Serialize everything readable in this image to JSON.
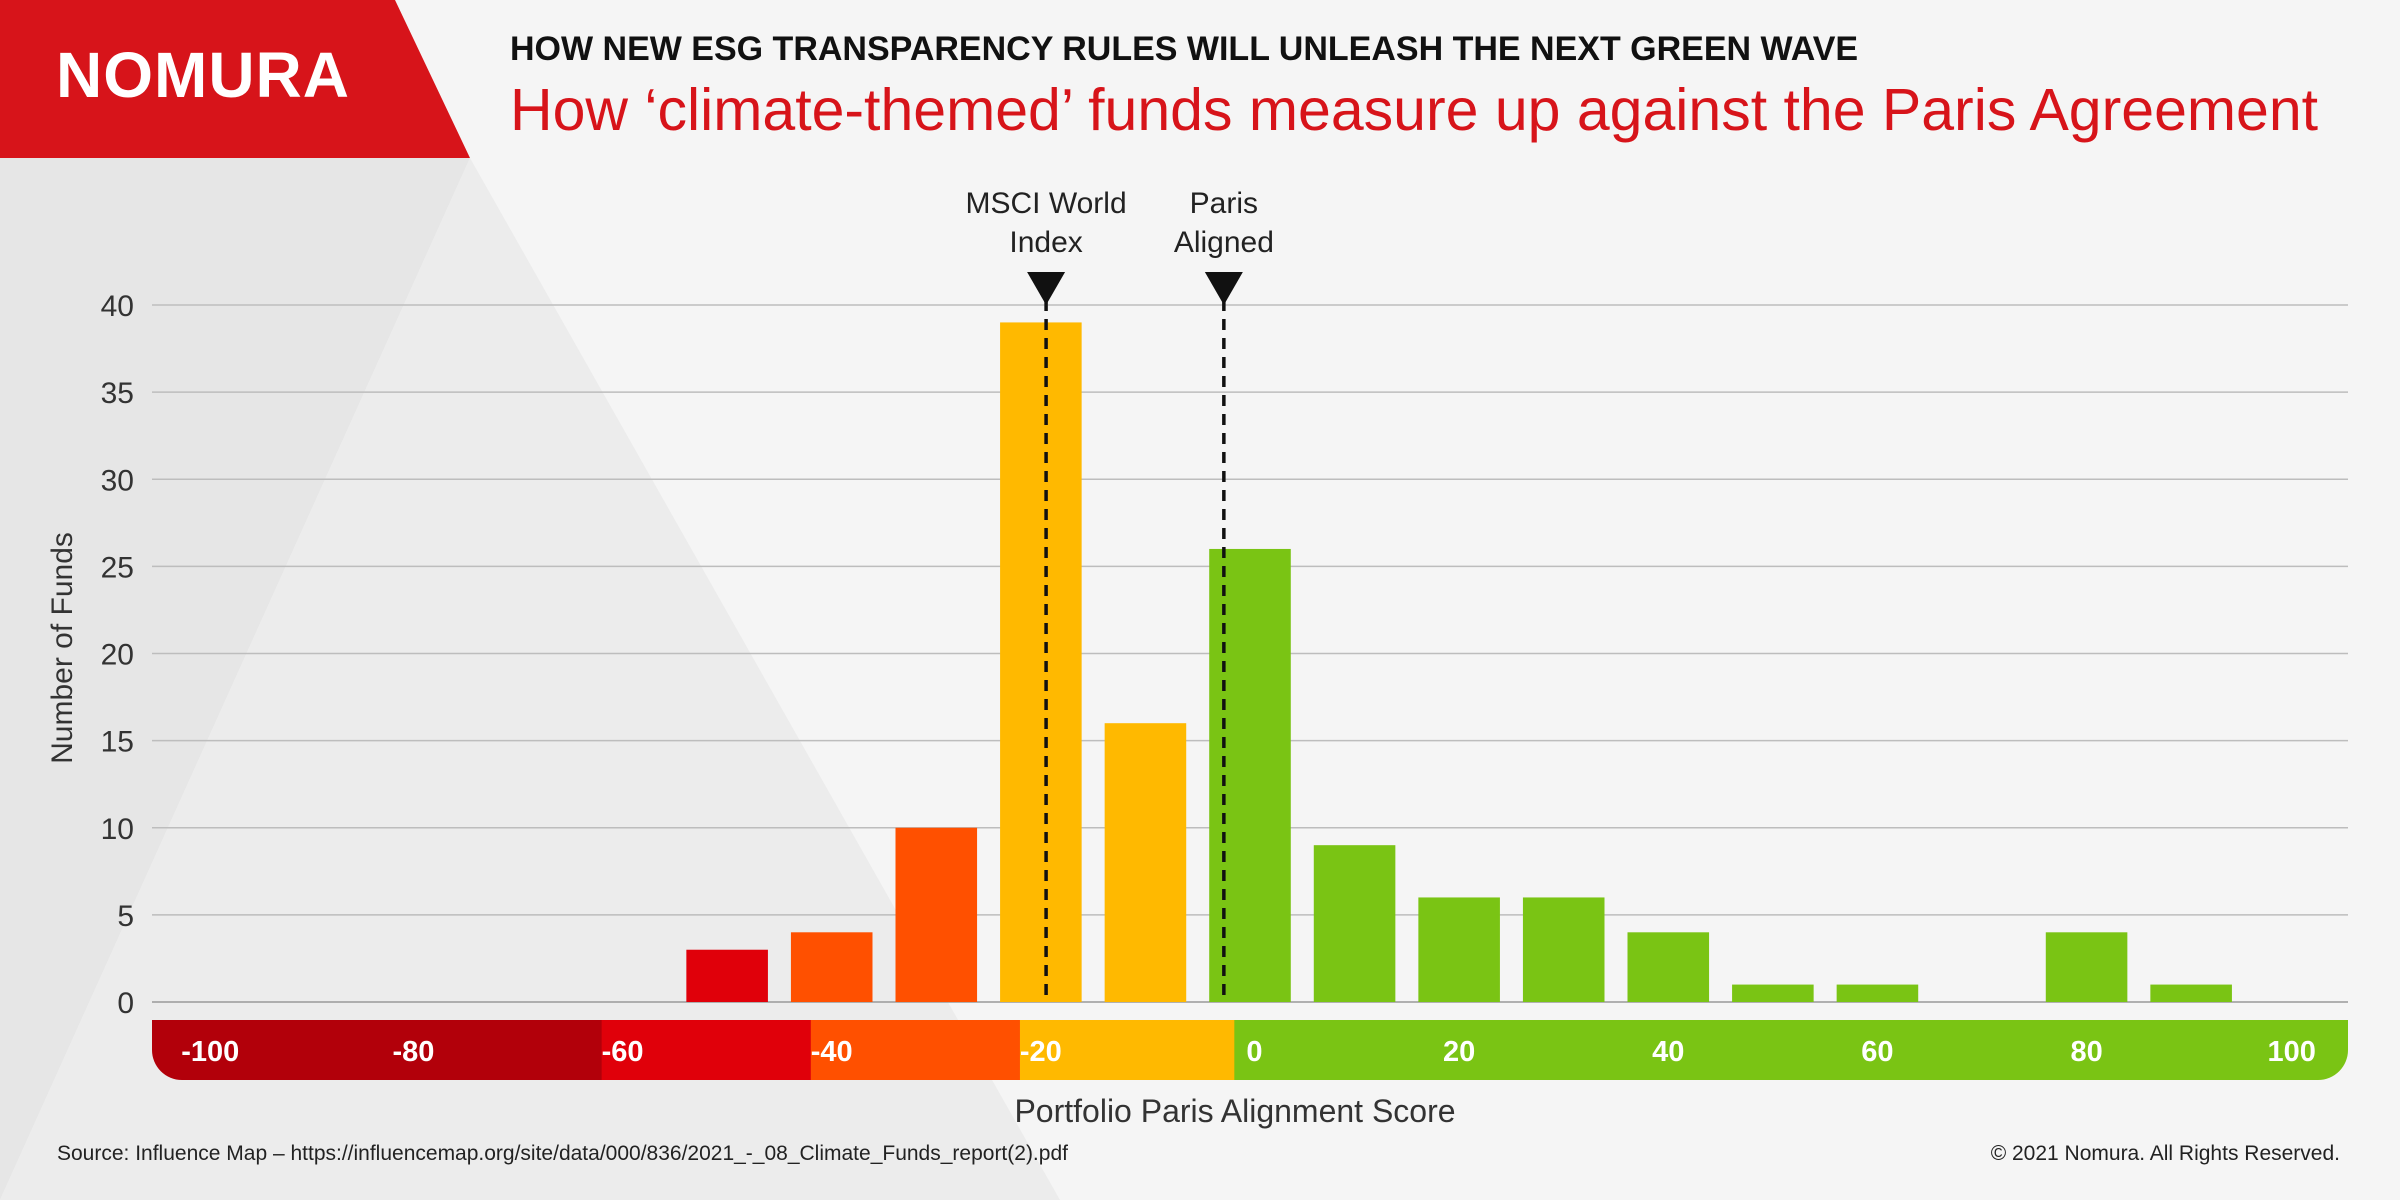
{
  "brand": {
    "logo_text": "NOMURA",
    "red": "#d7141a"
  },
  "header": {
    "kicker": "HOW NEW ESG TRANSPARENCY RULES WILL UNLEASH THE NEXT GREEN WAVE",
    "title": "How ‘climate-themed’ funds measure up against the Paris Agreement"
  },
  "footer": {
    "source": "Source: Influence Map – https://influencemap.org/site/data/000/836/2021_-_08_Climate_Funds_report(2).pdf",
    "copyright": "© 2021 Nomura. All Rights Reserved."
  },
  "chart_data": {
    "type": "bar",
    "xlabel": "Portfolio Paris Alignment Score",
    "ylabel": "Number of Funds",
    "xlim": [
      -105,
      105
    ],
    "ylim": [
      0,
      40
    ],
    "yticks": [
      0,
      5,
      10,
      15,
      20,
      25,
      30,
      35,
      40
    ],
    "grid": true,
    "bin_width": 10,
    "bars": [
      {
        "x": -50,
        "value": 3,
        "color": "#e0000a"
      },
      {
        "x": -40,
        "value": 4,
        "color": "#ff5000"
      },
      {
        "x": -30,
        "value": 10,
        "color": "#ff5000"
      },
      {
        "x": -20,
        "value": 39,
        "color": "#ffb900"
      },
      {
        "x": -10,
        "value": 16,
        "color": "#ffb900"
      },
      {
        "x": 0,
        "value": 26,
        "color": "#7ac414"
      },
      {
        "x": 10,
        "value": 9,
        "color": "#7ac414"
      },
      {
        "x": 20,
        "value": 6,
        "color": "#7ac414"
      },
      {
        "x": 30,
        "value": 6,
        "color": "#7ac414"
      },
      {
        "x": 40,
        "value": 4,
        "color": "#7ac414"
      },
      {
        "x": 50,
        "value": 1,
        "color": "#7ac414"
      },
      {
        "x": 60,
        "value": 1,
        "color": "#7ac414"
      },
      {
        "x": 80,
        "value": 4,
        "color": "#7ac414"
      },
      {
        "x": 90,
        "value": 1,
        "color": "#7ac414"
      }
    ],
    "score_scale": {
      "segments": [
        {
          "from": -105,
          "to": -62,
          "color": "#b2000a"
        },
        {
          "from": -62,
          "to": -42,
          "color": "#e0000a"
        },
        {
          "from": -42,
          "to": -22,
          "color": "#ff5000"
        },
        {
          "from": -22,
          "to": -1.5,
          "color": "#ffb900"
        },
        {
          "from": -1.5,
          "to": 105,
          "color": "#7ac414"
        }
      ],
      "labels": [
        {
          "x": -100,
          "text": "-100"
        },
        {
          "x": -80,
          "text": "-80"
        },
        {
          "x": -60,
          "text": "-60"
        },
        {
          "x": -40,
          "text": "-40"
        },
        {
          "x": -20,
          "text": "-20"
        },
        {
          "x": 0,
          "text": "0"
        },
        {
          "x": 20,
          "text": "20"
        },
        {
          "x": 40,
          "text": "40"
        },
        {
          "x": 60,
          "text": "60"
        },
        {
          "x": 80,
          "text": "80"
        },
        {
          "x": 100,
          "text": "100"
        }
      ]
    },
    "annotations": [
      {
        "x": -19.5,
        "lines": [
          "MSCI World",
          "Index"
        ]
      },
      {
        "x": -2.5,
        "lines": [
          "Paris",
          "Aligned"
        ]
      }
    ]
  }
}
